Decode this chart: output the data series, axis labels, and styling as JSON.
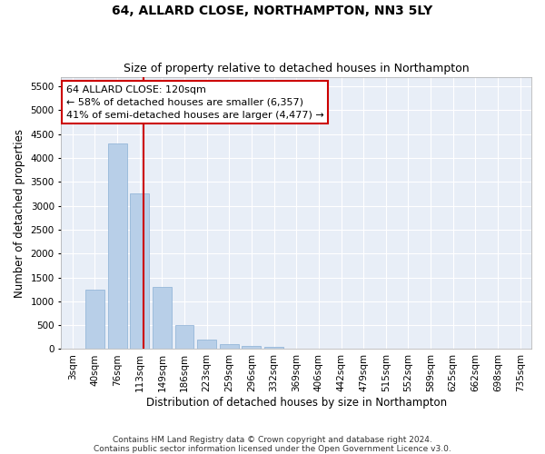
{
  "title": "64, ALLARD CLOSE, NORTHAMPTON, NN3 5LY",
  "subtitle": "Size of property relative to detached houses in Northampton",
  "xlabel": "Distribution of detached houses by size in Northampton",
  "ylabel": "Number of detached properties",
  "categories": [
    "3sqm",
    "40sqm",
    "76sqm",
    "113sqm",
    "149sqm",
    "186sqm",
    "223sqm",
    "259sqm",
    "296sqm",
    "332sqm",
    "369sqm",
    "406sqm",
    "442sqm",
    "479sqm",
    "515sqm",
    "552sqm",
    "589sqm",
    "625sqm",
    "662sqm",
    "698sqm",
    "735sqm"
  ],
  "values": [
    0,
    1250,
    4300,
    3250,
    1300,
    500,
    200,
    100,
    75,
    50,
    0,
    0,
    0,
    0,
    0,
    0,
    0,
    0,
    0,
    0,
    0
  ],
  "bar_color": "#b8cfe8",
  "bar_edge_color": "#8aafd4",
  "vline_color": "#cc0000",
  "annotation_line1": "64 ALLARD CLOSE: 120sqm",
  "annotation_line2": "← 58% of detached houses are smaller (6,357)",
  "annotation_line3": "41% of semi-detached houses are larger (4,477) →",
  "annotation_box_color": "#ffffff",
  "annotation_box_edge": "#cc0000",
  "ylim": [
    0,
    5700
  ],
  "yticks": [
    0,
    500,
    1000,
    1500,
    2000,
    2500,
    3000,
    3500,
    4000,
    4500,
    5000,
    5500
  ],
  "footer_line1": "Contains HM Land Registry data © Crown copyright and database right 2024.",
  "footer_line2": "Contains public sector information licensed under the Open Government Licence v3.0.",
  "plot_bg_color": "#e8eef7",
  "title_fontsize": 10,
  "subtitle_fontsize": 9,
  "axis_label_fontsize": 8.5,
  "tick_fontsize": 7.5,
  "footer_fontsize": 6.5,
  "annotation_fontsize": 8
}
